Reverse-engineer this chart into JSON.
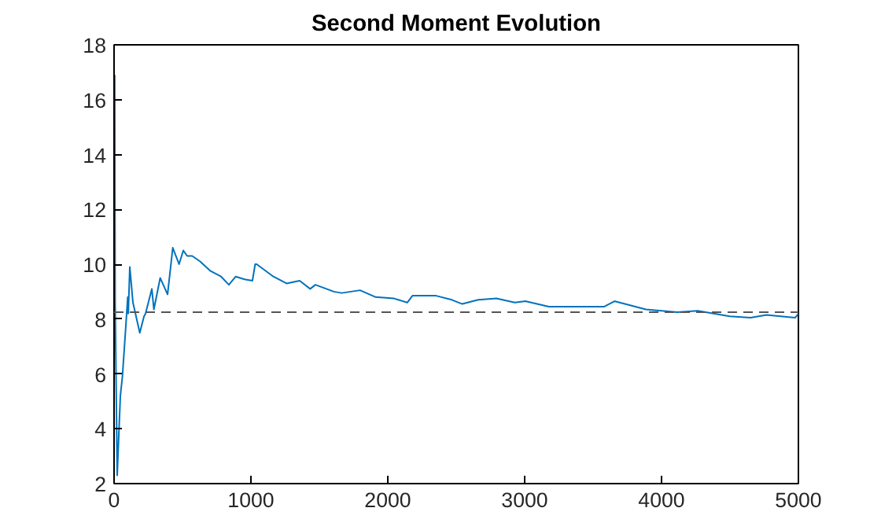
{
  "chart_data": {
    "type": "line",
    "title": "Second Moment Evolution",
    "x": [
      5,
      8,
      23,
      46,
      61,
      84,
      100,
      104,
      115,
      138,
      188,
      219,
      230,
      276,
      291,
      337,
      391,
      429,
      475,
      506,
      534,
      571,
      629,
      705,
      782,
      839,
      889,
      954,
      1011,
      1031,
      1042,
      1164,
      1260,
      1356,
      1433,
      1471,
      1606,
      1663,
      1797,
      1912,
      2046,
      2142,
      2180,
      2353,
      2468,
      2544,
      2660,
      2794,
      2928,
      3005,
      3177,
      3273,
      3579,
      3656,
      3886,
      4115,
      4264,
      4498,
      4651,
      4766,
      4976,
      5000
    ],
    "series": [
      {
        "color": "#0072bd",
        "values": [
          16.9,
          8.7,
          2.3,
          5.2,
          5.9,
          7.6,
          8.8,
          8.2,
          9.9,
          8.6,
          7.5,
          8.1,
          8.2,
          9.1,
          8.35,
          9.5,
          8.9,
          10.6,
          10.0,
          10.5,
          10.3,
          10.3,
          10.1,
          9.75,
          9.55,
          9.25,
          9.55,
          9.45,
          9.4,
          10.0,
          10.0,
          9.55,
          9.3,
          9.4,
          9.1,
          9.25,
          9.0,
          8.95,
          9.05,
          8.8,
          8.75,
          8.6,
          8.85,
          8.85,
          8.7,
          8.55,
          8.7,
          8.75,
          8.6,
          8.65,
          8.45,
          8.45,
          8.45,
          8.65,
          8.35,
          8.25,
          8.3,
          8.1,
          8.05,
          8.15,
          8.05,
          8.2
        ]
      }
    ],
    "xlim": [
      0,
      5000
    ],
    "ylim": [
      2,
      18
    ],
    "xticks": [
      0,
      1000,
      2000,
      3000,
      4000,
      5000
    ],
    "yticks": [
      2,
      4,
      6,
      8,
      10,
      12,
      14,
      16,
      18
    ],
    "ref_lines": [
      {
        "axis": "y",
        "value": 8.25,
        "color": "#555555",
        "line_style": "dashed"
      }
    ],
    "grid": false,
    "marker": "none",
    "line_style": "solid"
  }
}
